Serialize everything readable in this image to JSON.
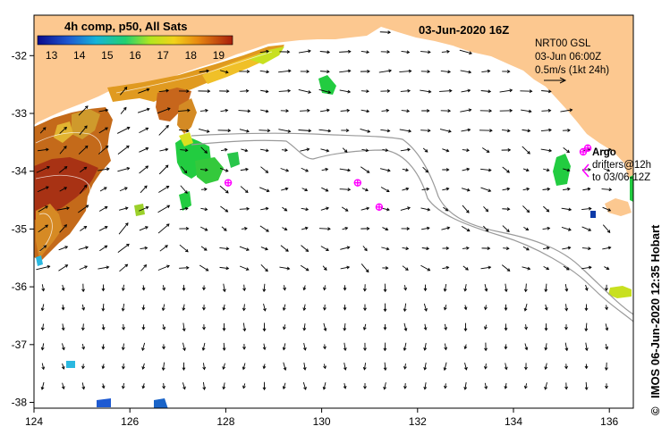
{
  "map": {
    "date_title": "03-Jun-2020 16Z",
    "colorbar": {
      "title": "4h comp, p50, All Sats",
      "ticks": [
        "13",
        "14",
        "15",
        "16",
        "17",
        "18",
        "19"
      ],
      "range": [
        12.5,
        19.5
      ]
    },
    "current_info": {
      "line1": "NRT00 GSL",
      "line2": "03-Jun 06:00Z",
      "line3": "0.5m/s (1kt 24h)"
    },
    "argo_label": "Argo",
    "drifters_line1": "drifters@12h",
    "drifters_line2": "to 03/06-12Z",
    "credit": "IMOS 06-Jun-2020 12:35 Hobart",
    "copyright_symbol": "©",
    "x_axis": {
      "range": [
        124,
        136.5
      ],
      "ticks": [
        "124",
        "126",
        "128",
        "130",
        "132",
        "134",
        "136"
      ]
    },
    "y_axis": {
      "range": [
        -38.1,
        -31.3
      ],
      "ticks": [
        "-32",
        "-33",
        "-34",
        "-35",
        "-36",
        "-37",
        "-38"
      ]
    },
    "colors": {
      "land": "#fcc890",
      "argo": "#ff00ff",
      "isobath": "#9a9a9a",
      "arrow": "#000000"
    },
    "argo_floats": [
      {
        "lon": 128.05,
        "lat": -34.2
      },
      {
        "lon": 130.75,
        "lat": -34.2
      },
      {
        "lon": 131.2,
        "lat": -34.62
      },
      {
        "lon": 135.55,
        "lat": -33.6
      }
    ]
  }
}
